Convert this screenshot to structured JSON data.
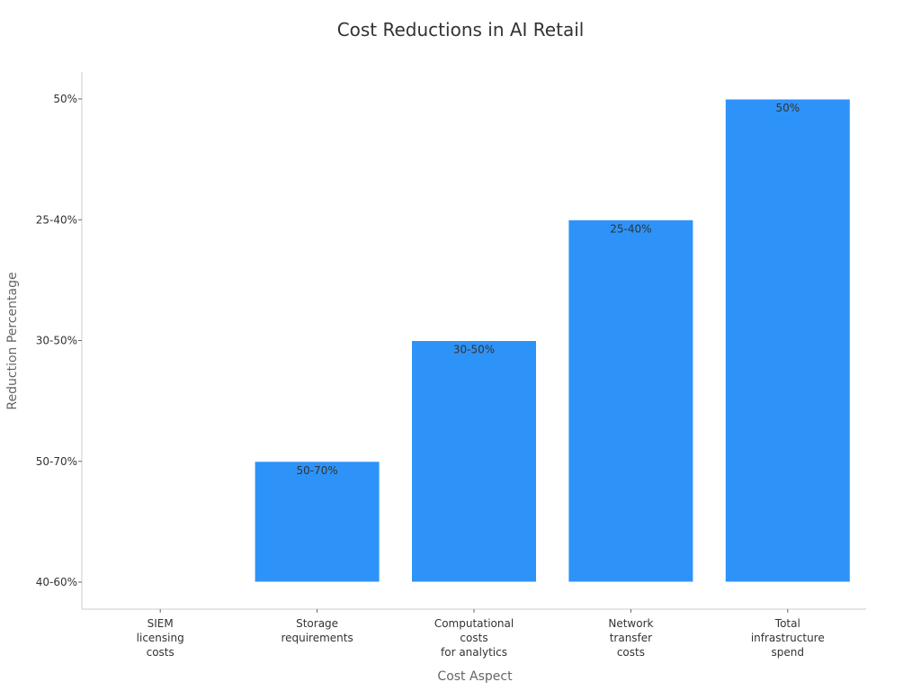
{
  "chart_data": {
    "type": "bar",
    "title": "Cost Reductions in AI Retail",
    "xlabel": "Cost Aspect",
    "ylabel": "Reduction Percentage",
    "y_categories": [
      "40-60%",
      "50-70%",
      "30-50%",
      "25-40%",
      "50%"
    ],
    "categories": [
      [
        "SIEM",
        "licensing",
        "costs"
      ],
      [
        "Storage",
        "requirements"
      ],
      [
        "Computational",
        "costs",
        "for analytics"
      ],
      [
        "Network",
        "transfer",
        "costs"
      ],
      [
        "Total",
        "infrastructure",
        "spend"
      ]
    ],
    "values": [
      "40-60%",
      "50-70%",
      "30-50%",
      "25-40%",
      "50%"
    ],
    "data_labels": [
      "",
      "50-70%",
      "30-50%",
      "25-40%",
      "50%"
    ],
    "bar_color": "#2e93f8",
    "grid": false,
    "legend": "none"
  }
}
